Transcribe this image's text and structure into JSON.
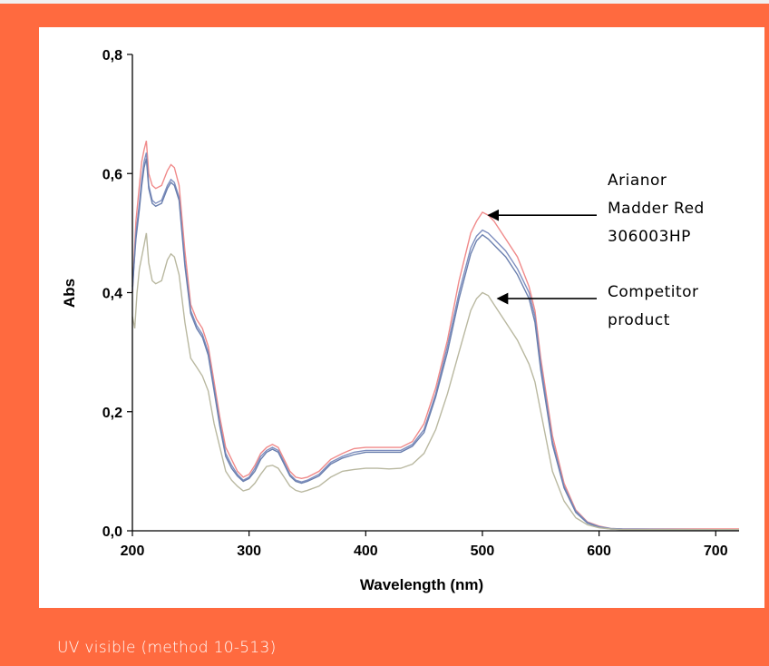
{
  "caption": "UV visible (method 10-513)",
  "colors": {
    "frame": "#ff6a3f",
    "panel": "#ffffff",
    "series": [
      "#f08a8a",
      "#7f8fbf",
      "#6a7fae",
      "#b9b8a0"
    ]
  },
  "chart_data": {
    "type": "line",
    "xlabel": "Wavelength (nm)",
    "ylabel": "Abs",
    "xlim": [
      200,
      720
    ],
    "ylim": [
      0,
      0.8
    ],
    "xticks": [
      {
        "value": 200,
        "label": "200"
      },
      {
        "value": 300,
        "label": "300"
      },
      {
        "value": 400,
        "label": "400"
      },
      {
        "value": 500,
        "label": "500"
      },
      {
        "value": 600,
        "label": "600"
      },
      {
        "value": 700,
        "label": "700"
      }
    ],
    "yticks": [
      {
        "value": 0.0,
        "label": "0,0"
      },
      {
        "value": 0.2,
        "label": "0,2"
      },
      {
        "value": 0.4,
        "label": "0,4"
      },
      {
        "value": 0.6,
        "label": "0,6"
      },
      {
        "value": 0.8,
        "label": "0,8"
      }
    ],
    "grid": false,
    "series": [
      {
        "color": "#f08a8a",
        "points": [
          [
            200,
            0.4
          ],
          [
            203,
            0.52
          ],
          [
            206,
            0.58
          ],
          [
            208,
            0.62
          ],
          [
            210,
            0.64
          ],
          [
            212,
            0.655
          ],
          [
            214,
            0.6
          ],
          [
            217,
            0.58
          ],
          [
            220,
            0.575
          ],
          [
            225,
            0.58
          ],
          [
            230,
            0.605
          ],
          [
            233,
            0.615
          ],
          [
            236,
            0.61
          ],
          [
            240,
            0.58
          ],
          [
            245,
            0.47
          ],
          [
            250,
            0.38
          ],
          [
            255,
            0.355
          ],
          [
            260,
            0.34
          ],
          [
            265,
            0.31
          ],
          [
            270,
            0.25
          ],
          [
            275,
            0.19
          ],
          [
            280,
            0.14
          ],
          [
            285,
            0.12
          ],
          [
            290,
            0.1
          ],
          [
            295,
            0.09
          ],
          [
            300,
            0.095
          ],
          [
            305,
            0.11
          ],
          [
            310,
            0.13
          ],
          [
            315,
            0.14
          ],
          [
            320,
            0.145
          ],
          [
            325,
            0.14
          ],
          [
            330,
            0.12
          ],
          [
            335,
            0.1
          ],
          [
            340,
            0.09
          ],
          [
            345,
            0.088
          ],
          [
            350,
            0.09
          ],
          [
            360,
            0.1
          ],
          [
            370,
            0.12
          ],
          [
            380,
            0.13
          ],
          [
            390,
            0.138
          ],
          [
            400,
            0.14
          ],
          [
            410,
            0.14
          ],
          [
            420,
            0.14
          ],
          [
            430,
            0.14
          ],
          [
            440,
            0.15
          ],
          [
            450,
            0.18
          ],
          [
            460,
            0.24
          ],
          [
            470,
            0.32
          ],
          [
            480,
            0.42
          ],
          [
            490,
            0.5
          ],
          [
            495,
            0.52
          ],
          [
            500,
            0.535
          ],
          [
            505,
            0.53
          ],
          [
            510,
            0.52
          ],
          [
            520,
            0.49
          ],
          [
            530,
            0.46
          ],
          [
            540,
            0.41
          ],
          [
            545,
            0.37
          ],
          [
            550,
            0.29
          ],
          [
            560,
            0.16
          ],
          [
            570,
            0.08
          ],
          [
            580,
            0.035
          ],
          [
            590,
            0.015
          ],
          [
            600,
            0.008
          ],
          [
            610,
            0.004
          ],
          [
            620,
            0.003
          ],
          [
            700,
            0.003
          ],
          [
            720,
            0.003
          ]
        ]
      },
      {
        "color": "#7f8fbf",
        "points": [
          [
            200,
            0.4
          ],
          [
            203,
            0.5
          ],
          [
            206,
            0.55
          ],
          [
            208,
            0.59
          ],
          [
            210,
            0.62
          ],
          [
            212,
            0.635
          ],
          [
            214,
            0.58
          ],
          [
            217,
            0.555
          ],
          [
            220,
            0.55
          ],
          [
            225,
            0.555
          ],
          [
            230,
            0.58
          ],
          [
            233,
            0.59
          ],
          [
            236,
            0.585
          ],
          [
            240,
            0.56
          ],
          [
            245,
            0.45
          ],
          [
            250,
            0.37
          ],
          [
            255,
            0.345
          ],
          [
            260,
            0.33
          ],
          [
            265,
            0.3
          ],
          [
            270,
            0.24
          ],
          [
            275,
            0.18
          ],
          [
            280,
            0.13
          ],
          [
            285,
            0.11
          ],
          [
            290,
            0.095
          ],
          [
            295,
            0.085
          ],
          [
            300,
            0.09
          ],
          [
            305,
            0.105
          ],
          [
            310,
            0.125
          ],
          [
            315,
            0.135
          ],
          [
            320,
            0.14
          ],
          [
            325,
            0.135
          ],
          [
            330,
            0.115
          ],
          [
            335,
            0.095
          ],
          [
            340,
            0.085
          ],
          [
            345,
            0.082
          ],
          [
            350,
            0.085
          ],
          [
            360,
            0.095
          ],
          [
            370,
            0.115
          ],
          [
            380,
            0.125
          ],
          [
            390,
            0.132
          ],
          [
            400,
            0.135
          ],
          [
            410,
            0.135
          ],
          [
            420,
            0.135
          ],
          [
            430,
            0.135
          ],
          [
            440,
            0.145
          ],
          [
            450,
            0.17
          ],
          [
            460,
            0.23
          ],
          [
            470,
            0.31
          ],
          [
            480,
            0.4
          ],
          [
            490,
            0.475
          ],
          [
            495,
            0.495
          ],
          [
            500,
            0.505
          ],
          [
            505,
            0.5
          ],
          [
            510,
            0.49
          ],
          [
            520,
            0.47
          ],
          [
            530,
            0.44
          ],
          [
            540,
            0.4
          ],
          [
            545,
            0.36
          ],
          [
            550,
            0.28
          ],
          [
            560,
            0.15
          ],
          [
            570,
            0.075
          ],
          [
            580,
            0.033
          ],
          [
            590,
            0.014
          ],
          [
            600,
            0.007
          ],
          [
            610,
            0.004
          ],
          [
            620,
            0.003
          ],
          [
            700,
            0.002
          ],
          [
            720,
            0.002
          ]
        ]
      },
      {
        "color": "#6a7fae",
        "points": [
          [
            200,
            0.41
          ],
          [
            203,
            0.49
          ],
          [
            206,
            0.54
          ],
          [
            208,
            0.58
          ],
          [
            210,
            0.61
          ],
          [
            212,
            0.625
          ],
          [
            214,
            0.575
          ],
          [
            217,
            0.55
          ],
          [
            220,
            0.545
          ],
          [
            225,
            0.55
          ],
          [
            230,
            0.575
          ],
          [
            233,
            0.585
          ],
          [
            236,
            0.58
          ],
          [
            240,
            0.555
          ],
          [
            245,
            0.445
          ],
          [
            250,
            0.365
          ],
          [
            255,
            0.34
          ],
          [
            260,
            0.325
          ],
          [
            265,
            0.295
          ],
          [
            270,
            0.235
          ],
          [
            275,
            0.175
          ],
          [
            280,
            0.125
          ],
          [
            285,
            0.105
          ],
          [
            290,
            0.092
          ],
          [
            295,
            0.083
          ],
          [
            300,
            0.088
          ],
          [
            305,
            0.1
          ],
          [
            310,
            0.12
          ],
          [
            315,
            0.132
          ],
          [
            320,
            0.137
          ],
          [
            325,
            0.132
          ],
          [
            330,
            0.112
          ],
          [
            335,
            0.092
          ],
          [
            340,
            0.083
          ],
          [
            345,
            0.08
          ],
          [
            350,
            0.083
          ],
          [
            360,
            0.092
          ],
          [
            370,
            0.112
          ],
          [
            380,
            0.122
          ],
          [
            390,
            0.128
          ],
          [
            400,
            0.132
          ],
          [
            410,
            0.132
          ],
          [
            420,
            0.132
          ],
          [
            430,
            0.132
          ],
          [
            440,
            0.142
          ],
          [
            450,
            0.165
          ],
          [
            460,
            0.225
          ],
          [
            470,
            0.3
          ],
          [
            480,
            0.39
          ],
          [
            490,
            0.465
          ],
          [
            495,
            0.487
          ],
          [
            500,
            0.497
          ],
          [
            505,
            0.49
          ],
          [
            510,
            0.48
          ],
          [
            520,
            0.46
          ],
          [
            530,
            0.43
          ],
          [
            540,
            0.39
          ],
          [
            545,
            0.35
          ],
          [
            550,
            0.27
          ],
          [
            560,
            0.145
          ],
          [
            570,
            0.072
          ],
          [
            580,
            0.031
          ],
          [
            590,
            0.013
          ],
          [
            600,
            0.006
          ],
          [
            610,
            0.003
          ],
          [
            620,
            0.002
          ],
          [
            700,
            0.002
          ],
          [
            720,
            0.002
          ]
        ]
      },
      {
        "color": "#b9b8a0",
        "points": [
          [
            200,
            0.36
          ],
          [
            202,
            0.34
          ],
          [
            204,
            0.4
          ],
          [
            206,
            0.44
          ],
          [
            208,
            0.46
          ],
          [
            210,
            0.48
          ],
          [
            212,
            0.5
          ],
          [
            214,
            0.45
          ],
          [
            217,
            0.42
          ],
          [
            220,
            0.415
          ],
          [
            225,
            0.42
          ],
          [
            230,
            0.455
          ],
          [
            233,
            0.465
          ],
          [
            236,
            0.46
          ],
          [
            240,
            0.43
          ],
          [
            245,
            0.35
          ],
          [
            250,
            0.29
          ],
          [
            255,
            0.275
          ],
          [
            260,
            0.26
          ],
          [
            265,
            0.235
          ],
          [
            270,
            0.18
          ],
          [
            275,
            0.14
          ],
          [
            280,
            0.1
          ],
          [
            285,
            0.085
          ],
          [
            290,
            0.075
          ],
          [
            295,
            0.067
          ],
          [
            300,
            0.07
          ],
          [
            305,
            0.08
          ],
          [
            310,
            0.095
          ],
          [
            315,
            0.108
          ],
          [
            320,
            0.11
          ],
          [
            325,
            0.105
          ],
          [
            330,
            0.09
          ],
          [
            335,
            0.075
          ],
          [
            340,
            0.068
          ],
          [
            345,
            0.065
          ],
          [
            350,
            0.068
          ],
          [
            360,
            0.075
          ],
          [
            370,
            0.09
          ],
          [
            380,
            0.1
          ],
          [
            390,
            0.103
          ],
          [
            400,
            0.105
          ],
          [
            410,
            0.105
          ],
          [
            420,
            0.104
          ],
          [
            430,
            0.105
          ],
          [
            440,
            0.112
          ],
          [
            450,
            0.13
          ],
          [
            460,
            0.17
          ],
          [
            470,
            0.23
          ],
          [
            480,
            0.3
          ],
          [
            490,
            0.37
          ],
          [
            495,
            0.39
          ],
          [
            500,
            0.4
          ],
          [
            505,
            0.395
          ],
          [
            510,
            0.38
          ],
          [
            520,
            0.35
          ],
          [
            530,
            0.32
          ],
          [
            540,
            0.28
          ],
          [
            545,
            0.25
          ],
          [
            550,
            0.2
          ],
          [
            560,
            0.1
          ],
          [
            570,
            0.05
          ],
          [
            580,
            0.022
          ],
          [
            590,
            0.01
          ],
          [
            600,
            0.005
          ],
          [
            610,
            0.003
          ],
          [
            620,
            0.002
          ],
          [
            700,
            0.002
          ],
          [
            720,
            0.002
          ]
        ]
      }
    ],
    "annotations": [
      {
        "lines": [
          "Arianor",
          "Madder Red",
          "306003HP"
        ],
        "arrow_to": [
          502,
          0.53
        ]
      },
      {
        "lines": [
          "Competitor",
          "product"
        ],
        "arrow_to": [
          510,
          0.39
        ]
      }
    ]
  }
}
